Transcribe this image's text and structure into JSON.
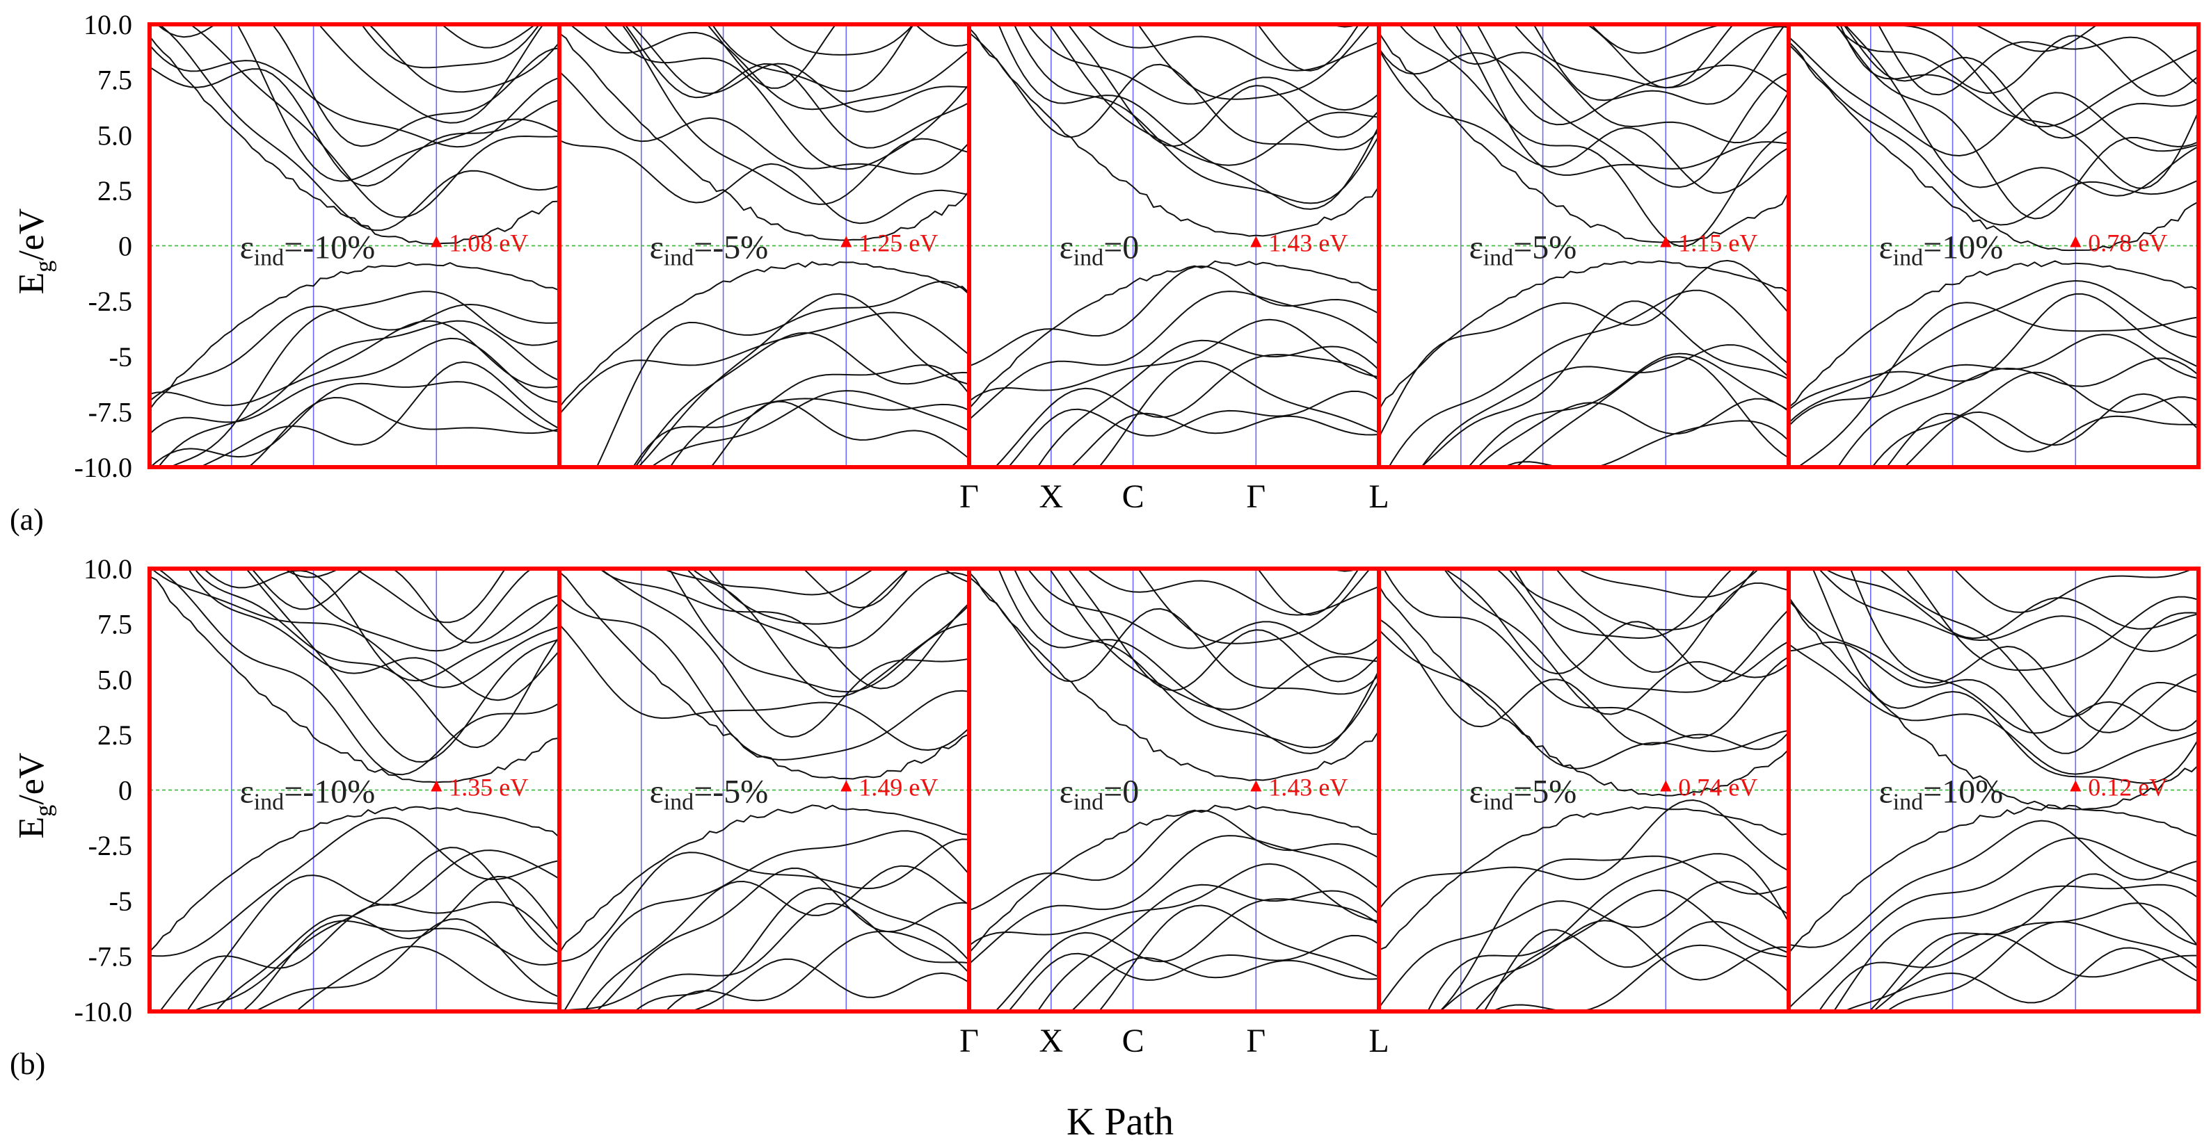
{
  "colors": {
    "frame": "#ff0000",
    "band": "#111111",
    "kline": "#6a6aff",
    "fermi": "#44bb44",
    "gap_label": "#ee1111",
    "gap_marker": "#ff0000",
    "text": "#000000"
  },
  "chart_data": {
    "type": "line",
    "title": "",
    "xlabel": "K Path",
    "ylabel": "Eg/eV",
    "ylabel_main": "E",
    "ylabel_sub": "g",
    "ylabel_unit": "/eV",
    "ylim": [
      -10.0,
      10.0
    ],
    "yticks": [
      {
        "value": 10.0,
        "label": "10.0"
      },
      {
        "value": 7.5,
        "label": "7.5"
      },
      {
        "value": 5.0,
        "label": "5.0"
      },
      {
        "value": 2.5,
        "label": "2.5"
      },
      {
        "value": 0,
        "label": "0"
      },
      {
        "value": -2.5,
        "label": "-2.5"
      },
      {
        "value": -5,
        "label": "-5"
      },
      {
        "value": -7.5,
        "label": "-7.5"
      },
      {
        "value": -10.0,
        "label": "-10.0"
      }
    ],
    "kpath": [
      "Γ",
      "X",
      "C",
      "Γ",
      "L"
    ],
    "kpath_positions": [
      0,
      0.2,
      0.4,
      0.7,
      1.0
    ],
    "fermi_level": 0,
    "strain_symbol": "ε",
    "strain_subscript": "ind",
    "panels": [
      {
        "label": "(a)",
        "subplots": [
          {
            "strain_value": "=-10%",
            "gap_label": "1.08 eV",
            "gap": 1.08,
            "seed": 3
          },
          {
            "strain_value": "=-5%",
            "gap_label": "1.25 eV",
            "gap": 1.25,
            "seed": 11
          },
          {
            "strain_value": "=0",
            "gap_label": "1.43 eV",
            "gap": 1.43,
            "seed": 17
          },
          {
            "strain_value": "=5%",
            "gap_label": "1.15 eV",
            "gap": 1.15,
            "seed": 23
          },
          {
            "strain_value": "=10%",
            "gap_label": "0.78 eV",
            "gap": 0.78,
            "seed": 31
          }
        ]
      },
      {
        "label": "(b)",
        "subplots": [
          {
            "strain_value": "=-10%",
            "gap_label": "1.35 eV",
            "gap": 1.35,
            "seed": 41
          },
          {
            "strain_value": "=-5%",
            "gap_label": "1.49 eV",
            "gap": 1.49,
            "seed": 47
          },
          {
            "strain_value": "=0",
            "gap_label": "1.43 eV",
            "gap": 1.43,
            "seed": 17
          },
          {
            "strain_value": "=5%",
            "gap_label": "0.74 eV",
            "gap": 0.74,
            "seed": 59
          },
          {
            "strain_value": "=10%",
            "gap_label": "0.12 eV",
            "gap": 0.12,
            "seed": 67
          }
        ]
      }
    ]
  }
}
